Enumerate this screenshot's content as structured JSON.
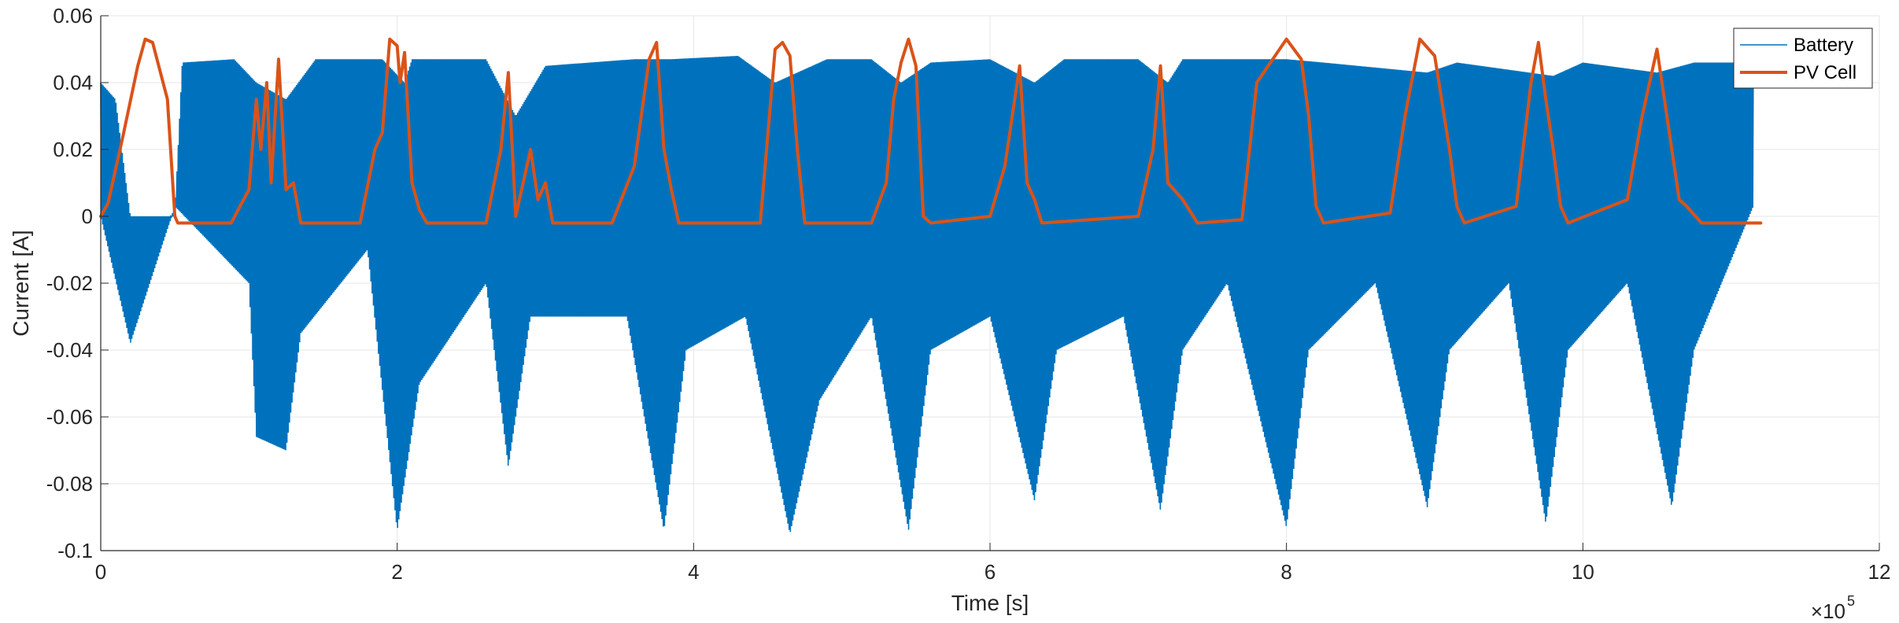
{
  "chart_data": {
    "type": "line",
    "xlabel": "Time [s]",
    "ylabel": "Current [A]",
    "x_multiplier_label": "×10",
    "x_multiplier_exp": "5",
    "xlim": [
      0,
      12
    ],
    "ylim": [
      -0.1,
      0.06
    ],
    "x_ticks": [
      0,
      2,
      4,
      6,
      8,
      10,
      12
    ],
    "x_tick_labels": [
      "0",
      "2",
      "4",
      "6",
      "8",
      "10",
      "12"
    ],
    "y_ticks": [
      -0.1,
      -0.08,
      -0.06,
      -0.04,
      -0.02,
      0,
      0.02,
      0.04,
      0.06
    ],
    "y_tick_labels": [
      "-0.1",
      "-0.08",
      "-0.06",
      "-0.04",
      "-0.02",
      "0",
      "0.02",
      "0.04",
      "0.06"
    ],
    "grid": true,
    "legend_position": "top-right",
    "legend_entries": [
      "Battery",
      "PV Cell"
    ],
    "colors": {
      "battery": "#0072BD",
      "pv": "#D95319",
      "grid": "#e6e6e6",
      "axis": "#262626"
    },
    "series": [
      {
        "name": "Battery",
        "band_x_end": 11.15,
        "envelope_upper": [
          [
            0.0,
            0.04
          ],
          [
            0.1,
            0.035
          ],
          [
            0.2,
            0.0
          ],
          [
            0.5,
            0.0
          ],
          [
            0.55,
            0.046
          ],
          [
            0.9,
            0.047
          ],
          [
            1.05,
            0.04
          ],
          [
            1.25,
            0.035
          ],
          [
            1.45,
            0.047
          ],
          [
            1.9,
            0.047
          ],
          [
            2.05,
            0.04
          ],
          [
            2.1,
            0.047
          ],
          [
            2.6,
            0.047
          ],
          [
            2.8,
            0.03
          ],
          [
            3.0,
            0.045
          ],
          [
            3.6,
            0.047
          ],
          [
            3.85,
            0.047
          ],
          [
            4.3,
            0.048
          ],
          [
            4.55,
            0.04
          ],
          [
            4.9,
            0.047
          ],
          [
            5.2,
            0.047
          ],
          [
            5.4,
            0.04
          ],
          [
            5.6,
            0.046
          ],
          [
            6.0,
            0.047
          ],
          [
            6.3,
            0.04
          ],
          [
            6.5,
            0.047
          ],
          [
            7.0,
            0.047
          ],
          [
            7.2,
            0.04
          ],
          [
            7.3,
            0.047
          ],
          [
            8.0,
            0.047
          ],
          [
            8.25,
            0.046
          ],
          [
            8.95,
            0.043
          ],
          [
            9.15,
            0.046
          ],
          [
            9.8,
            0.042
          ],
          [
            10.0,
            0.046
          ],
          [
            10.5,
            0.043
          ],
          [
            10.75,
            0.046
          ],
          [
            11.15,
            0.046
          ]
        ],
        "envelope_lower": [
          [
            0.0,
            0.0
          ],
          [
            0.2,
            -0.038
          ],
          [
            0.5,
            0.003
          ],
          [
            1.0,
            -0.02
          ],
          [
            1.05,
            -0.066
          ],
          [
            1.25,
            -0.07
          ],
          [
            1.35,
            -0.035
          ],
          [
            1.8,
            -0.01
          ],
          [
            2.0,
            -0.094
          ],
          [
            2.15,
            -0.05
          ],
          [
            2.6,
            -0.02
          ],
          [
            2.75,
            -0.075
          ],
          [
            2.9,
            -0.03
          ],
          [
            3.55,
            -0.03
          ],
          [
            3.8,
            -0.094
          ],
          [
            3.95,
            -0.04
          ],
          [
            4.35,
            -0.03
          ],
          [
            4.65,
            -0.095
          ],
          [
            4.85,
            -0.055
          ],
          [
            5.2,
            -0.03
          ],
          [
            5.45,
            -0.094
          ],
          [
            5.6,
            -0.04
          ],
          [
            6.0,
            -0.03
          ],
          [
            6.3,
            -0.085
          ],
          [
            6.45,
            -0.04
          ],
          [
            6.9,
            -0.03
          ],
          [
            7.15,
            -0.088
          ],
          [
            7.3,
            -0.04
          ],
          [
            7.6,
            -0.02
          ],
          [
            8.0,
            -0.093
          ],
          [
            8.15,
            -0.04
          ],
          [
            8.6,
            -0.02
          ],
          [
            8.95,
            -0.087
          ],
          [
            9.1,
            -0.04
          ],
          [
            9.5,
            -0.02
          ],
          [
            9.75,
            -0.092
          ],
          [
            9.9,
            -0.04
          ],
          [
            10.3,
            -0.02
          ],
          [
            10.6,
            -0.087
          ],
          [
            10.75,
            -0.04
          ],
          [
            11.15,
            0.003
          ]
        ]
      },
      {
        "name": "PV Cell",
        "points": [
          [
            0.0,
            0.0
          ],
          [
            0.05,
            0.004
          ],
          [
            0.15,
            0.024
          ],
          [
            0.25,
            0.045
          ],
          [
            0.3,
            0.053
          ],
          [
            0.35,
            0.052
          ],
          [
            0.45,
            0.035
          ],
          [
            0.5,
            0.0
          ],
          [
            0.52,
            -0.002
          ],
          [
            0.88,
            -0.002
          ],
          [
            1.0,
            0.008
          ],
          [
            1.05,
            0.035
          ],
          [
            1.08,
            0.02
          ],
          [
            1.12,
            0.04
          ],
          [
            1.15,
            0.01
          ],
          [
            1.2,
            0.047
          ],
          [
            1.25,
            0.008
          ],
          [
            1.3,
            0.01
          ],
          [
            1.35,
            -0.002
          ],
          [
            1.75,
            -0.002
          ],
          [
            1.85,
            0.02
          ],
          [
            1.9,
            0.025
          ],
          [
            1.95,
            0.053
          ],
          [
            2.0,
            0.051
          ],
          [
            2.02,
            0.04
          ],
          [
            2.05,
            0.049
          ],
          [
            2.1,
            0.01
          ],
          [
            2.15,
            0.002
          ],
          [
            2.2,
            -0.002
          ],
          [
            2.6,
            -0.002
          ],
          [
            2.7,
            0.02
          ],
          [
            2.75,
            0.043
          ],
          [
            2.8,
            0.0
          ],
          [
            2.85,
            0.01
          ],
          [
            2.9,
            0.02
          ],
          [
            2.95,
            0.005
          ],
          [
            3.0,
            0.01
          ],
          [
            3.05,
            -0.002
          ],
          [
            3.45,
            -0.002
          ],
          [
            3.6,
            0.015
          ],
          [
            3.7,
            0.047
          ],
          [
            3.75,
            0.052
          ],
          [
            3.8,
            0.02
          ],
          [
            3.85,
            0.008
          ],
          [
            3.9,
            -0.002
          ],
          [
            4.45,
            -0.002
          ],
          [
            4.55,
            0.05
          ],
          [
            4.6,
            0.052
          ],
          [
            4.65,
            0.048
          ],
          [
            4.7,
            0.02
          ],
          [
            4.75,
            -0.002
          ],
          [
            5.2,
            -0.002
          ],
          [
            5.3,
            0.01
          ],
          [
            5.35,
            0.035
          ],
          [
            5.4,
            0.046
          ],
          [
            5.45,
            0.053
          ],
          [
            5.5,
            0.045
          ],
          [
            5.55,
            0.0
          ],
          [
            5.6,
            -0.002
          ],
          [
            6.0,
            0.0
          ],
          [
            6.1,
            0.015
          ],
          [
            6.2,
            0.045
          ],
          [
            6.25,
            0.01
          ],
          [
            6.3,
            0.005
          ],
          [
            6.35,
            -0.002
          ],
          [
            7.0,
            0.0
          ],
          [
            7.1,
            0.02
          ],
          [
            7.15,
            0.045
          ],
          [
            7.2,
            0.01
          ],
          [
            7.3,
            0.005
          ],
          [
            7.4,
            -0.002
          ],
          [
            7.7,
            -0.001
          ],
          [
            7.8,
            0.04
          ],
          [
            8.0,
            0.053
          ],
          [
            8.1,
            0.047
          ],
          [
            8.15,
            0.03
          ],
          [
            8.2,
            0.003
          ],
          [
            8.25,
            -0.002
          ],
          [
            8.7,
            0.001
          ],
          [
            8.8,
            0.03
          ],
          [
            8.9,
            0.053
          ],
          [
            9.0,
            0.048
          ],
          [
            9.1,
            0.02
          ],
          [
            9.15,
            0.003
          ],
          [
            9.2,
            -0.002
          ],
          [
            9.55,
            0.003
          ],
          [
            9.65,
            0.04
          ],
          [
            9.7,
            0.052
          ],
          [
            9.75,
            0.035
          ],
          [
            9.8,
            0.02
          ],
          [
            9.85,
            0.003
          ],
          [
            9.9,
            -0.002
          ],
          [
            10.3,
            0.005
          ],
          [
            10.4,
            0.03
          ],
          [
            10.5,
            0.05
          ],
          [
            10.55,
            0.035
          ],
          [
            10.6,
            0.02
          ],
          [
            10.65,
            0.005
          ],
          [
            10.7,
            0.003
          ],
          [
            10.8,
            -0.002
          ],
          [
            11.2,
            -0.002
          ]
        ]
      }
    ]
  }
}
